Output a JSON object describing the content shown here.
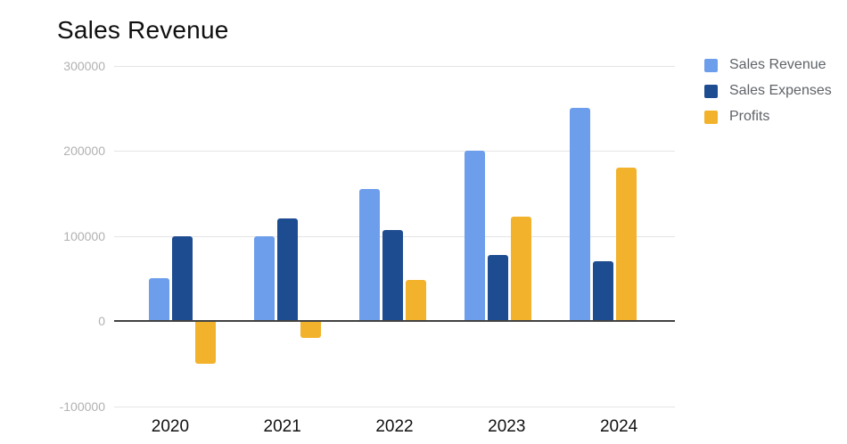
{
  "title": "Sales Revenue",
  "colors": {
    "sales_revenue": "#6D9EEB",
    "sales_expenses": "#1E4C90",
    "profits": "#F2B22B",
    "gridline": "#E4E4E4",
    "zero_axis": "#424242",
    "y_tick_text": "#B1B1B1",
    "x_tick_text": "#111111",
    "legend_text": "#5F6368",
    "background": "#FFFFFF"
  },
  "chart_data": {
    "type": "bar",
    "title": "Sales Revenue",
    "categories": [
      "2020",
      "2021",
      "2022",
      "2023",
      "2024"
    ],
    "series": [
      {
        "name": "Sales Revenue",
        "color": "#6D9EEB",
        "values": [
          50000,
          100000,
          155000,
          200000,
          250000
        ]
      },
      {
        "name": "Sales Expenses",
        "color": "#1E4C90",
        "values": [
          100000,
          120000,
          107000,
          77000,
          70000
        ]
      },
      {
        "name": "Profits",
        "color": "#F2B22B",
        "values": [
          -50000,
          -20000,
          48000,
          123000,
          180000
        ]
      }
    ],
    "y_ticks": [
      300000,
      200000,
      100000,
      0,
      -100000
    ],
    "ylim": [
      -100000,
      300000
    ],
    "xlabel": "",
    "ylabel": "",
    "grid": true,
    "legend_position": "right"
  }
}
